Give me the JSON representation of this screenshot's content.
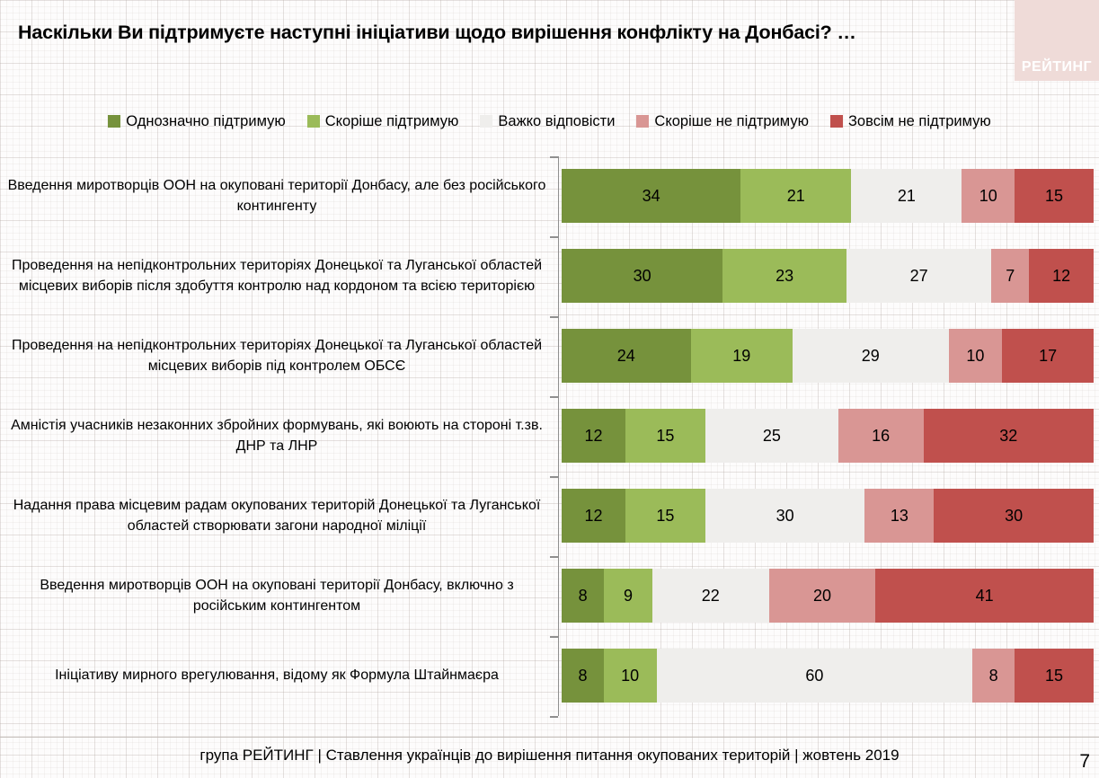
{
  "title": "Наскільки Ви підтримуєте наступні ініціативи щодо вирішення конфлікту на Донбасі? …",
  "logo": {
    "text": "РЕЙТИНГ",
    "background": "#EFDBD8",
    "text_color": "#FFFFFF"
  },
  "chart_data": {
    "type": "bar",
    "variant": "horizontal-stacked-100",
    "unit": "percent",
    "legend_position": "top",
    "title": "Наскільки Ви підтримуєте наступні ініціативи щодо вирішення конфлікту на Донбасі? …",
    "categories": [
      "Введення миротворців ООН на окуповані території Донбасу, але без російського контингенту",
      "Проведення на непідконтрольних територіях Донецької та Луганської областей місцевих виборів після здобуття контролю над кордоном та всією територією",
      "Проведення на непідконтрольних територіях Донецької та Луганської областей місцевих виборів під контролем ОБСЄ",
      "Амністія учасників незаконних збройних формувань, які воюють на стороні т.зв. ДНР та ЛНР",
      "Надання права місцевим радам окупованих територій Донецької та Луганської областей створювати загони народної міліції",
      "Введення миротворців ООН на окуповані території Донбасу, включно з російським контингентом",
      "Ініціативу мирного врегулювання, відому як Формула Штайнмаєра"
    ],
    "series": [
      {
        "name": "Однозначно підтримую",
        "color": "#76923C",
        "text_color": "#000000",
        "values": [
          34,
          30,
          24,
          12,
          12,
          8,
          8
        ]
      },
      {
        "name": "Скоріше підтримую",
        "color": "#9BBB59",
        "text_color": "#000000",
        "values": [
          21,
          23,
          19,
          15,
          15,
          9,
          10
        ]
      },
      {
        "name": "Важко відповісти",
        "color": "#EFEEEC",
        "text_color": "#000000",
        "values": [
          21,
          27,
          29,
          25,
          30,
          22,
          60
        ]
      },
      {
        "name": "Скоріше не підтримую",
        "color": "#D99694",
        "text_color": "#000000",
        "values": [
          10,
          7,
          10,
          16,
          13,
          20,
          8
        ]
      },
      {
        "name": "Зовсім не підтримую",
        "color": "#C0504D",
        "text_color": "#000000",
        "values": [
          15,
          12,
          17,
          32,
          30,
          41,
          15
        ]
      }
    ]
  },
  "footer": {
    "source_line": "група РЕЙТИНГ | Ставлення українців до вирішення питання окупованих територій  | жовтень  2019",
    "page_number": "7"
  }
}
